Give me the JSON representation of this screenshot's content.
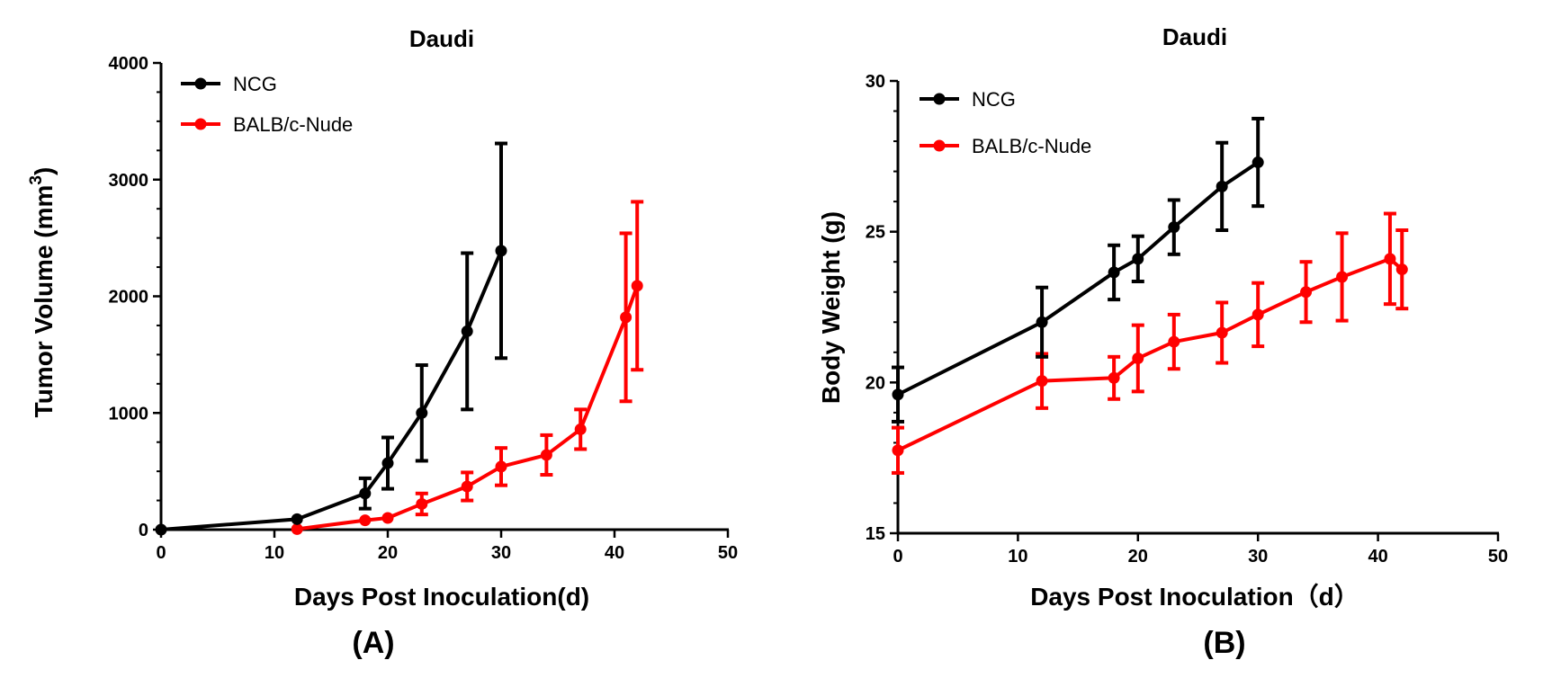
{
  "chart_data": [
    {
      "type": "line",
      "panel_label": "(A)",
      "title": "Daudi",
      "xlabel": "Days Post Inoculation(d)",
      "ylabel": "Tumor Volume (mm",
      "ylabel_sup": "3",
      "ylabel_close": ")",
      "xlim": [
        0,
        50
      ],
      "ylim": [
        0,
        4000
      ],
      "xticks": [
        0,
        10,
        20,
        30,
        40,
        50
      ],
      "yticks": [
        0,
        1000,
        2000,
        3000,
        4000
      ],
      "legend_position": "top-left",
      "series": [
        {
          "name": "NCG",
          "color": "#000000",
          "x": [
            0,
            12,
            18,
            20,
            23,
            27,
            30
          ],
          "y": [
            0,
            90,
            310,
            570,
            1000,
            1700,
            2390
          ],
          "err": [
            0,
            0,
            130,
            220,
            410,
            670,
            920
          ]
        },
        {
          "name": "BALB/c-Nude",
          "color": "#ff0000",
          "x": [
            12,
            18,
            20,
            23,
            27,
            30,
            34,
            37,
            41,
            42
          ],
          "y": [
            5,
            80,
            100,
            220,
            370,
            540,
            640,
            860,
            1820,
            2090
          ],
          "err": [
            0,
            0,
            0,
            90,
            120,
            160,
            170,
            170,
            720,
            720
          ]
        }
      ]
    },
    {
      "type": "line",
      "panel_label": "(B)",
      "title": "Daudi",
      "xlabel": "Days Post Inoculation（d）",
      "ylabel": "Body Weight (g)",
      "xlim": [
        0,
        50
      ],
      "ylim": [
        15,
        30
      ],
      "xticks": [
        0,
        10,
        20,
        30,
        40,
        50
      ],
      "yticks": [
        15,
        20,
        25,
        30
      ],
      "legend_position": "top-left",
      "series": [
        {
          "name": "NCG",
          "color": "#000000",
          "x": [
            0,
            12,
            18,
            20,
            23,
            27,
            30
          ],
          "y": [
            19.6,
            22.0,
            23.65,
            24.1,
            25.15,
            26.5,
            27.3
          ],
          "err": [
            0.9,
            1.15,
            0.9,
            0.75,
            0.9,
            1.45,
            1.45
          ]
        },
        {
          "name": "BALB/c-Nude",
          "color": "#ff0000",
          "x": [
            0,
            12,
            18,
            20,
            23,
            27,
            30,
            34,
            37,
            41,
            42
          ],
          "y": [
            17.75,
            20.05,
            20.15,
            20.8,
            21.35,
            21.65,
            22.25,
            23.0,
            23.5,
            24.1,
            23.75
          ],
          "err": [
            0.75,
            0.9,
            0.7,
            1.1,
            0.9,
            1.0,
            1.05,
            1.0,
            1.45,
            1.5,
            1.3
          ]
        }
      ]
    }
  ]
}
